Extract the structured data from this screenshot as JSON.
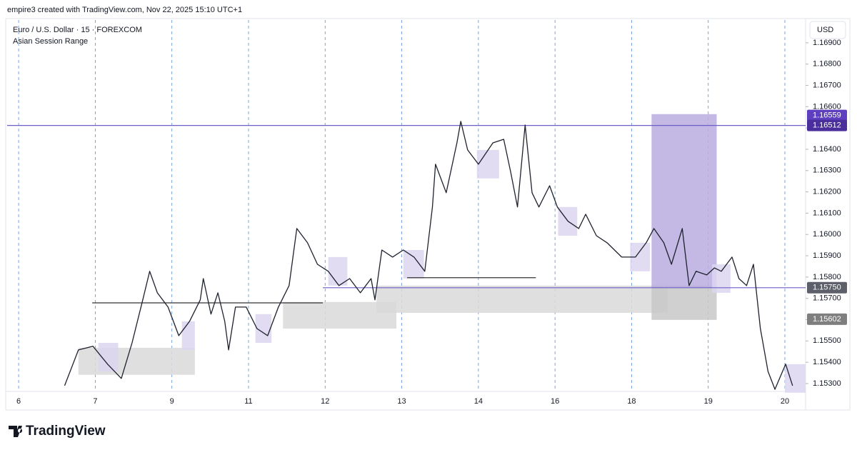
{
  "header": "empire3 created with TradingView.com, Nov 22, 2025 15:10 UTC+1",
  "brand": "TradingView",
  "chart_data": {
    "type": "line",
    "title": "Euro / U.S. Dollar · 15 · FOREXCOM",
    "subtitle": "Asian Session Range",
    "y_axis_label": "USD",
    "color": "#1e222d",
    "grid": "vertical",
    "grid_color": "#5b8fd6",
    "xlim": [
      -0.15,
      10.27
    ],
    "xticks": [
      {
        "value": 0,
        "label": "6"
      },
      {
        "value": 1,
        "label": "7"
      },
      {
        "value": 2,
        "label": "9"
      },
      {
        "value": 3,
        "label": "11"
      },
      {
        "value": 4,
        "label": "12"
      },
      {
        "value": 5,
        "label": "13"
      },
      {
        "value": 6,
        "label": "14"
      },
      {
        "value": 7,
        "label": "16"
      },
      {
        "value": 8,
        "label": "18"
      },
      {
        "value": 9,
        "label": "19"
      },
      {
        "value": 10,
        "label": "20"
      }
    ],
    "ylim": [
      1.15263,
      1.17007
    ],
    "yticks": [
      {
        "value": 1.169,
        "label": "1.16900"
      },
      {
        "value": 1.168,
        "label": "1.16800"
      },
      {
        "value": 1.167,
        "label": "1.16700"
      },
      {
        "value": 1.166,
        "label": "1.16600"
      },
      {
        "value": 1.165,
        "label": "1.16500"
      },
      {
        "value": 1.164,
        "label": "1.16400"
      },
      {
        "value": 1.163,
        "label": "1.16300"
      },
      {
        "value": 1.162,
        "label": "1.16200"
      },
      {
        "value": 1.161,
        "label": "1.16100"
      },
      {
        "value": 1.16,
        "label": "1.16000"
      },
      {
        "value": 1.159,
        "label": "1.15900"
      },
      {
        "value": 1.158,
        "label": "1.15800"
      },
      {
        "value": 1.157,
        "label": "1.15700"
      },
      {
        "value": 1.156,
        "label": "1.15600"
      },
      {
        "value": 1.155,
        "label": "1.15500"
      },
      {
        "value": 1.154,
        "label": "1.15400"
      },
      {
        "value": 1.153,
        "label": "1.15300"
      }
    ],
    "x": [
      0.6,
      0.78,
      0.97,
      1.16,
      1.34,
      1.48,
      1.62,
      1.71,
      1.81,
      1.95,
      2.09,
      2.23,
      2.37,
      2.41,
      2.51,
      2.6,
      2.69,
      2.74,
      2.83,
      2.97,
      3.11,
      3.25,
      3.39,
      3.53,
      3.63,
      3.77,
      3.9,
      4.04,
      4.18,
      4.32,
      4.46,
      4.6,
      4.65,
      4.74,
      4.88,
      5.02,
      5.16,
      5.3,
      5.4,
      5.44,
      5.58,
      5.72,
      5.77,
      5.86,
      6.0,
      6.19,
      6.33,
      6.42,
      6.51,
      6.61,
      6.7,
      6.79,
      6.93,
      7.03,
      7.17,
      7.31,
      7.4,
      7.54,
      7.68,
      7.87,
      8.05,
      8.19,
      8.29,
      8.42,
      8.52,
      8.66,
      8.75,
      8.84,
      8.98,
      9.08,
      9.17,
      9.31,
      9.4,
      9.5,
      9.59,
      9.68,
      9.78,
      9.87,
      10.01,
      10.1
    ],
    "values": [
      1.1529,
      1.15458,
      1.15475,
      1.15391,
      1.15324,
      1.15491,
      1.15693,
      1.15827,
      1.15726,
      1.15659,
      1.15525,
      1.15592,
      1.15693,
      1.15793,
      1.15626,
      1.15726,
      1.15592,
      1.15458,
      1.15659,
      1.15659,
      1.15558,
      1.15525,
      1.15659,
      1.1576,
      1.16028,
      1.15961,
      1.1586,
      1.15827,
      1.1576,
      1.15793,
      1.15726,
      1.15793,
      1.15693,
      1.15927,
      1.15894,
      1.15927,
      1.15894,
      1.15827,
      1.16129,
      1.1633,
      1.16196,
      1.1643,
      1.16531,
      1.16397,
      1.1633,
      1.1643,
      1.16447,
      1.16296,
      1.16129,
      1.16514,
      1.16196,
      1.16129,
      1.16229,
      1.16129,
      1.16062,
      1.16028,
      1.16095,
      1.15994,
      1.15961,
      1.15894,
      1.15894,
      1.15961,
      1.16028,
      1.15961,
      1.1586,
      1.16028,
      1.1576,
      1.15827,
      1.1581,
      1.15843,
      1.15827,
      1.15894,
      1.15793,
      1.1576,
      1.1586,
      1.15558,
      1.15357,
      1.15273,
      1.15391,
      1.1529
    ],
    "zones": [
      {
        "x": [
          0.78,
          2.3
        ],
        "y": [
          1.15341,
          1.15468
        ],
        "color": "#d9d9d9"
      },
      {
        "x": [
          3.45,
          4.93
        ],
        "y": [
          1.15558,
          1.15683
        ],
        "color": "#d9d9d9"
      },
      {
        "x": [
          4.67,
          8.47
        ],
        "y": [
          1.15632,
          1.1576
        ],
        "color": "#d9d9d9"
      },
      {
        "x": [
          8.26,
          9.11
        ],
        "y": [
          1.15599,
          1.1576
        ],
        "color": "#c8c8c8"
      },
      {
        "x": [
          8.26,
          9.11
        ],
        "y": [
          1.1575,
          1.16565
        ],
        "color": "#b9addf"
      },
      {
        "x": [
          1.04,
          1.3
        ],
        "y": [
          1.15357,
          1.15491
        ],
        "color": "#ddd6f1"
      },
      {
        "x": [
          2.13,
          2.3
        ],
        "y": [
          1.15458,
          1.15592
        ],
        "color": "#ddd6f1"
      },
      {
        "x": [
          3.09,
          3.3
        ],
        "y": [
          1.15491,
          1.15626
        ],
        "color": "#ddd6f1"
      },
      {
        "x": [
          4.04,
          4.29
        ],
        "y": [
          1.1576,
          1.15894
        ],
        "color": "#ddd6f1"
      },
      {
        "x": [
          5.02,
          5.29
        ],
        "y": [
          1.15793,
          1.15927
        ],
        "color": "#ddd6f1"
      },
      {
        "x": [
          5.98,
          6.27
        ],
        "y": [
          1.16263,
          1.16397
        ],
        "color": "#ddd6f1"
      },
      {
        "x": [
          7.04,
          7.29
        ],
        "y": [
          1.15994,
          1.16129
        ],
        "color": "#ddd6f1"
      },
      {
        "x": [
          7.98,
          8.24
        ],
        "y": [
          1.15827,
          1.15961
        ],
        "color": "#ddd6f1"
      },
      {
        "x": [
          9.05,
          9.29
        ],
        "y": [
          1.15726,
          1.1586
        ],
        "color": "#ddd6f1"
      },
      {
        "x": [
          10.0,
          10.27
        ],
        "y": [
          1.15257,
          1.15391
        ],
        "color": "#ddd6f1"
      }
    ],
    "levels": [
      {
        "x": [
          -0.15,
          10.27
        ],
        "value": 1.16512,
        "color": "#6c5fc7"
      },
      {
        "x": [
          3.97,
          10.27
        ],
        "value": 1.1575,
        "color": "#6c5fc7"
      },
      {
        "x": [
          0.96,
          3.97
        ],
        "value": 1.15679,
        "color": "#333333"
      },
      {
        "x": [
          5.07,
          6.75
        ],
        "value": 1.15797,
        "color": "#333333"
      }
    ],
    "price_markers": [
      {
        "value": 1.16559,
        "label": "1.16559",
        "color": "#5e3fbf"
      },
      {
        "value": 1.16512,
        "label": "1.16512",
        "color": "#4a2f9c"
      },
      {
        "value": 1.1575,
        "label": "1.15750",
        "color": "#5d606b"
      },
      {
        "value": 1.15602,
        "label": "1.15602",
        "color": "#7f7f7f"
      }
    ]
  }
}
